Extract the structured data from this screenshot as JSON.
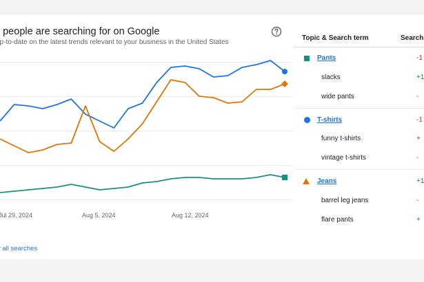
{
  "header": {
    "title": "at people are searching for on Google",
    "subtitle": "up-to-date on the latest trends relevant to your business in the United States",
    "help_icon": "help-circle-icon"
  },
  "footer": {
    "view_all_label": "v all searches"
  },
  "table": {
    "col_topic": "Topic & Search term",
    "col_search": "Search",
    "groups": [
      {
        "topic": "Pants",
        "marker": "square",
        "color": "#12937f",
        "delta": "-1",
        "terms": [
          {
            "label": "slacks",
            "delta": "+1"
          },
          {
            "label": "wide pants",
            "delta": "-"
          }
        ]
      },
      {
        "topic": "T-shirts",
        "marker": "circle",
        "color": "#1a73e8",
        "delta": "-1",
        "terms": [
          {
            "label": "funny t-shirts",
            "delta": "+"
          },
          {
            "label": "vintage t-shirts",
            "delta": "-"
          }
        ]
      },
      {
        "topic": "Jeans",
        "marker": "triangle",
        "color": "#e37400",
        "delta": "+1",
        "terms": [
          {
            "label": "barrel leg jeans",
            "delta": "-"
          },
          {
            "label": "flare pants",
            "delta": "+"
          }
        ]
      }
    ]
  },
  "chart_data": {
    "type": "line",
    "x_tick_labels": [
      "Jul 29, 2024",
      "Aug 5, 2024",
      "Aug 12, 2024"
    ],
    "grid": true,
    "ylim": [
      0,
      100
    ],
    "series": [
      {
        "name": "T-shirts",
        "color": "#1a73e8",
        "values": [
          57,
          69,
          68,
          66,
          69,
          73,
          62,
          57,
          52,
          66,
          70,
          85,
          96,
          97,
          95,
          89,
          90,
          96,
          98,
          101,
          93
        ]
      },
      {
        "name": "Jeans",
        "color": "#e37400",
        "values": [
          44,
          39,
          34,
          36,
          40,
          41,
          68,
          42,
          35,
          44,
          55,
          71,
          87,
          85,
          75,
          74,
          70,
          71,
          80,
          80,
          84
        ]
      },
      {
        "name": "Pants",
        "color": "#12937f",
        "values": [
          5,
          6,
          7,
          8,
          9,
          11,
          9,
          7,
          8,
          9,
          12,
          13,
          15,
          16,
          16,
          15,
          15,
          15,
          16,
          18,
          16
        ]
      }
    ]
  }
}
